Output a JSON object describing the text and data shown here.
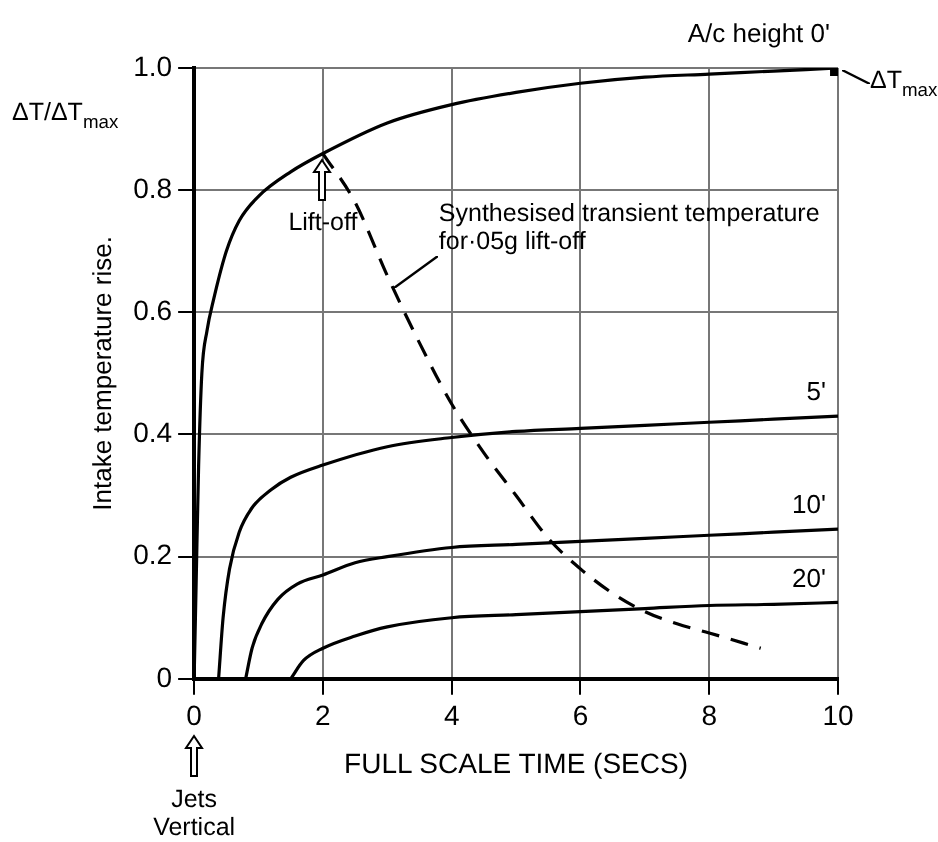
{
  "chart_data": {
    "type": "line",
    "xlabel": "FULL SCALE TIME (SECS)",
    "ylabel": "Intake temperature rise.",
    "xlim": [
      0,
      10
    ],
    "xticks": [
      0,
      2,
      4,
      6,
      8,
      10
    ],
    "ylim": [
      0,
      1.0
    ],
    "yticks": [
      0,
      0.2,
      0.4,
      0.6,
      0.8,
      {
        "value": 1.0,
        "label": "1.0"
      }
    ],
    "grid": true,
    "legend": false,
    "marker": "none",
    "line_style": "solid",
    "series": [
      {
        "name": "A/c height 0'",
        "color": "#000000",
        "x": [
          0,
          0.03,
          0.07,
          0.12,
          0.2,
          0.3,
          0.5,
          0.7,
          1.0,
          1.5,
          2,
          3,
          4,
          5,
          6,
          7,
          8,
          9,
          10
        ],
        "values": [
          0,
          0.15,
          0.35,
          0.5,
          0.57,
          0.62,
          0.7,
          0.75,
          0.79,
          0.83,
          0.86,
          0.91,
          0.94,
          0.96,
          0.975,
          0.985,
          0.99,
          0.995,
          1.0
        ]
      },
      {
        "name": "5'",
        "color": "#000000",
        "x": [
          0.38,
          0.45,
          0.55,
          0.7,
          0.9,
          1.2,
          1.5,
          2,
          3,
          4,
          5,
          6,
          7,
          8,
          9,
          10
        ],
        "values": [
          0,
          0.1,
          0.18,
          0.24,
          0.28,
          0.31,
          0.33,
          0.35,
          0.38,
          0.395,
          0.405,
          0.41,
          0.415,
          0.42,
          0.425,
          0.43
        ]
      },
      {
        "name": "10'",
        "color": "#000000",
        "x": [
          0.8,
          0.9,
          1.05,
          1.3,
          1.6,
          2,
          2.5,
          3,
          4,
          5,
          6,
          7,
          8,
          9,
          10
        ],
        "values": [
          0,
          0.05,
          0.09,
          0.13,
          0.155,
          0.17,
          0.19,
          0.2,
          0.215,
          0.22,
          0.225,
          0.23,
          0.235,
          0.24,
          0.245
        ]
      },
      {
        "name": "20'",
        "color": "#000000",
        "x": [
          1.5,
          1.7,
          2,
          2.5,
          3,
          4,
          5,
          6,
          7,
          8,
          9,
          10
        ],
        "values": [
          0,
          0.03,
          0.05,
          0.07,
          0.085,
          0.1,
          0.105,
          0.11,
          0.115,
          0.12,
          0.122,
          0.125
        ]
      },
      {
        "color": "#000000",
        "line_style": "dashed",
        "x": [
          2,
          2.5,
          3,
          3.5,
          4,
          4.5,
          5,
          5.5,
          6,
          6.5,
          7,
          7.5,
          8,
          8.8
        ],
        "values": [
          0.86,
          0.78,
          0.66,
          0.55,
          0.45,
          0.37,
          0.3,
          0.23,
          0.18,
          0.14,
          0.11,
          0.09,
          0.075,
          0.05
        ]
      },
      {
        "marker": "square",
        "color": "#000000",
        "x": [
          10
        ],
        "values": [
          1.0
        ]
      }
    ],
    "annotations": [
      "ΔT/ΔT$_{max}$",
      {
        "text": "ΔT$_{max}$",
        "x": 10,
        "y": 1.0
      },
      {
        "text": "Lift-off",
        "x": 2,
        "y": 0.86
      },
      "Synthesised transient temperature for·05g lift-off",
      "Jets Vertical"
    ]
  }
}
